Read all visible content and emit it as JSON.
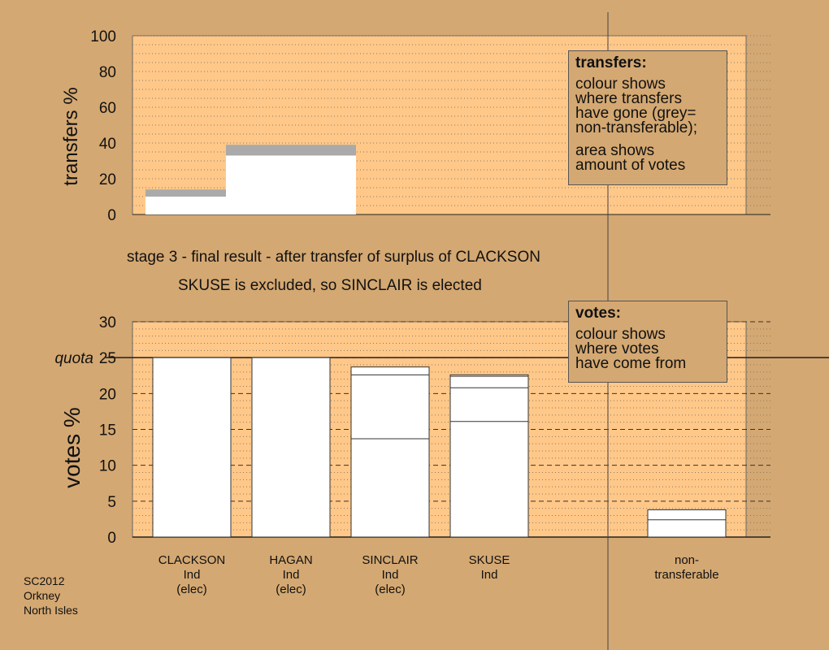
{
  "colors": {
    "background": "#d4a872",
    "plot_bg": "#ffc889",
    "bar_fill": "#ffffff",
    "nontransferable": "#aaaaaa",
    "axis": "#222222"
  },
  "captions": {
    "stage": "stage 3 - final result - after transfer of surplus of CLACKSON",
    "outcome": "SKUSE is excluded, so SINCLAIR is elected"
  },
  "legend_transfers": {
    "title": "transfers:",
    "lines": [
      "colour shows",
      "where transfers",
      "have gone (grey=",
      "non-transferable);"
    ],
    "lines2": [
      "area shows",
      "amount of votes"
    ]
  },
  "legend_votes": {
    "title": "votes:",
    "lines": [
      "colour shows",
      "where votes",
      "have come from"
    ]
  },
  "footer": [
    "SC2012",
    "Orkney",
    "North Isles"
  ],
  "chart_data": [
    {
      "type": "bar",
      "ylabel": "transfers %",
      "ylim": [
        0,
        100
      ],
      "yticks": [
        0,
        20,
        40,
        60,
        80,
        100
      ],
      "grid": "dotted every 5",
      "bars": [
        {
          "name": "transfer-bar-1",
          "value": 14,
          "segments": [
            {
              "from": 0,
              "to": 10,
              "color": "#ffffff"
            },
            {
              "from": 10,
              "to": 14,
              "color": "#aaaaaa"
            }
          ]
        },
        {
          "name": "transfer-bar-2",
          "value": 39,
          "segments": [
            {
              "from": 0,
              "to": 33,
              "color": "#ffffff"
            },
            {
              "from": 33,
              "to": 39,
              "color": "#aaaaaa"
            }
          ]
        }
      ]
    },
    {
      "type": "bar",
      "ylabel": "votes %",
      "ylim": [
        0,
        30
      ],
      "yticks": [
        0,
        5,
        10,
        15,
        20,
        25,
        30
      ],
      "quota": {
        "label": "quota",
        "value": 25
      },
      "grid": "dotted minor, dashed major",
      "categories": [
        {
          "lines": [
            "CLACKSON",
            "Ind",
            "(elec)"
          ],
          "value": 25,
          "dividers": []
        },
        {
          "lines": [
            "HAGAN",
            "Ind",
            "(elec)"
          ],
          "value": 25,
          "dividers": []
        },
        {
          "lines": [
            "SINCLAIR",
            "Ind",
            "(elec)"
          ],
          "value": 23.7,
          "dividers": [
            13.7,
            22.6
          ]
        },
        {
          "lines": [
            "SKUSE",
            "Ind"
          ],
          "value": 22.6,
          "dividers": [
            16.1,
            20.8,
            22.4
          ]
        },
        {
          "lines": [
            "non-",
            "transferable"
          ],
          "value": 3.8,
          "dividers": [
            2.4
          ]
        }
      ]
    }
  ]
}
